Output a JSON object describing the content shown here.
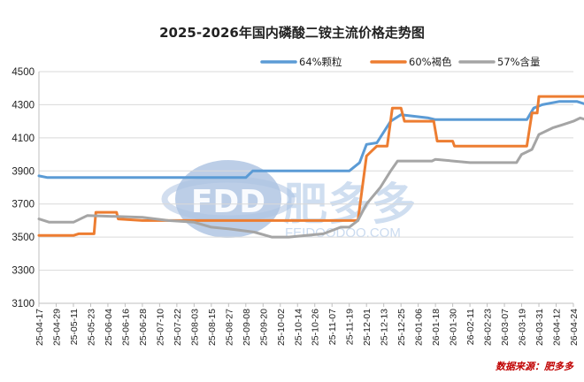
{
  "chart_data": {
    "type": "line",
    "title": "2025-2026年国内磷酸二铵主流价格走势图",
    "source_note": "数据来源：肥多多",
    "watermark": {
      "brand": "FDD",
      "name": "肥多多",
      "url": "FEIDOODOO.COM"
    },
    "ylim": [
      3100,
      4500
    ],
    "yticks": [
      3100,
      3300,
      3500,
      3700,
      3900,
      4100,
      4300,
      4500
    ],
    "x_labels": [
      "25-04-17",
      "25-04-29",
      "25-05-11",
      "25-05-23",
      "25-06-04",
      "25-06-16",
      "25-06-28",
      "25-07-10",
      "25-07-22",
      "25-08-03",
      "25-08-15",
      "25-08-27",
      "25-09-08",
      "25-09-20",
      "25-10-02",
      "25-10-14",
      "25-10-26",
      "25-11-07",
      "25-11-19",
      "25-12-01",
      "25-12-13",
      "25-12-25",
      "26-01-06",
      "26-01-18",
      "26-01-30",
      "26-02-11",
      "26-02-23",
      "26-03-07",
      "26-03-19",
      "26-03-31",
      "26-04-12",
      "26-04-24"
    ],
    "series": [
      {
        "name": "64%颗粒",
        "color": "#5b9bd5",
        "points": [
          [
            0,
            3870
          ],
          [
            0.5,
            3860
          ],
          [
            12,
            3860
          ],
          [
            12.4,
            3900
          ],
          [
            18,
            3900
          ],
          [
            18.6,
            3950
          ],
          [
            19,
            4060
          ],
          [
            19.6,
            4070
          ],
          [
            20.4,
            4200
          ],
          [
            21,
            4240
          ],
          [
            22.6,
            4220
          ],
          [
            23,
            4210
          ],
          [
            28.3,
            4210
          ],
          [
            28.7,
            4280
          ],
          [
            29.2,
            4300
          ],
          [
            30.2,
            4320
          ],
          [
            31.2,
            4320
          ],
          [
            31.8,
            4300
          ],
          [
            32,
            4300
          ]
        ]
      },
      {
        "name": "60%褐色",
        "color": "#ed7d31",
        "points": [
          [
            0,
            3510
          ],
          [
            2,
            3510
          ],
          [
            2.3,
            3520
          ],
          [
            3.2,
            3520
          ],
          [
            3.3,
            3650
          ],
          [
            4.5,
            3650
          ],
          [
            4.6,
            3610
          ],
          [
            6,
            3600
          ],
          [
            13,
            3600
          ],
          [
            18,
            3600
          ],
          [
            18.5,
            3600
          ],
          [
            19,
            3990
          ],
          [
            19.6,
            4050
          ],
          [
            20.2,
            4050
          ],
          [
            20.5,
            4280
          ],
          [
            21,
            4280
          ],
          [
            21.2,
            4200
          ],
          [
            22.9,
            4200
          ],
          [
            23.1,
            4080
          ],
          [
            24,
            4080
          ],
          [
            24.1,
            4050
          ],
          [
            28.3,
            4050
          ],
          [
            28.6,
            4250
          ],
          [
            28.9,
            4250
          ],
          [
            29,
            4350
          ],
          [
            32,
            4350
          ]
        ]
      },
      {
        "name": "57%含量",
        "color": "#a5a5a5",
        "points": [
          [
            0,
            3610
          ],
          [
            0.6,
            3590
          ],
          [
            2,
            3590
          ],
          [
            2.8,
            3630
          ],
          [
            6,
            3620
          ],
          [
            7.5,
            3600
          ],
          [
            9,
            3590
          ],
          [
            10,
            3560
          ],
          [
            11,
            3550
          ],
          [
            12.5,
            3530
          ],
          [
            13.5,
            3500
          ],
          [
            14.5,
            3500
          ],
          [
            15.5,
            3510
          ],
          [
            16.5,
            3520
          ],
          [
            17.5,
            3560
          ],
          [
            18,
            3560
          ],
          [
            18.5,
            3600
          ],
          [
            19,
            3700
          ],
          [
            19.8,
            3800
          ],
          [
            20.4,
            3900
          ],
          [
            20.8,
            3960
          ],
          [
            22.8,
            3960
          ],
          [
            23,
            3970
          ],
          [
            25,
            3950
          ],
          [
            27.7,
            3950
          ],
          [
            28,
            4000
          ],
          [
            28.6,
            4030
          ],
          [
            29,
            4120
          ],
          [
            29.8,
            4160
          ],
          [
            30.4,
            4180
          ],
          [
            31,
            4200
          ],
          [
            31.4,
            4220
          ],
          [
            32,
            4200
          ]
        ]
      }
    ]
  }
}
